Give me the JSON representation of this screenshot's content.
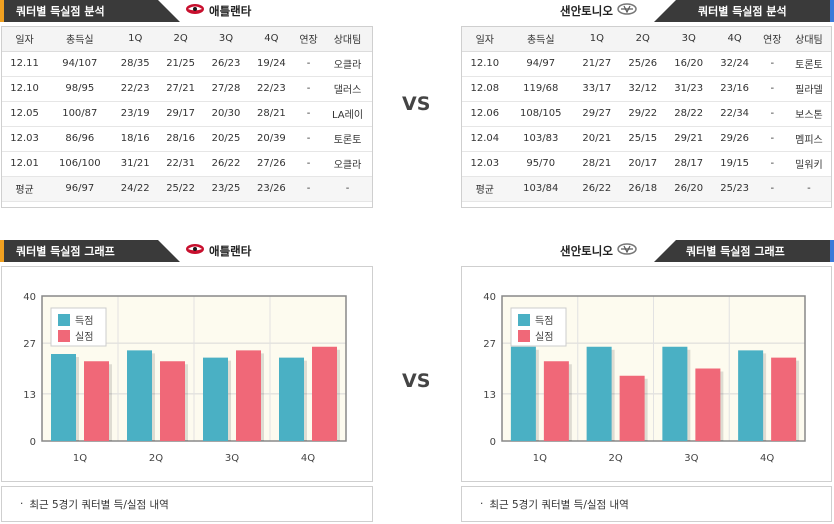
{
  "colors": {
    "header_bg": "#3a3a3a",
    "accent_left": "#f0a020",
    "accent_right": "#3b7ad9",
    "scored": "#4ab0c4",
    "allowed": "#f06878",
    "chart_bg": "#fdfbef",
    "frame": "#888888"
  },
  "analysis": {
    "left_title": "쿼터별 득실점 분석",
    "right_title": "쿼터별 득실점 분석",
    "headers": [
      "일자",
      "총득실",
      "1Q",
      "2Q",
      "3Q",
      "4Q",
      "연장",
      "상대팀"
    ]
  },
  "graph": {
    "left_title": "쿼터별 득실점 그래프",
    "right_title": "쿼터별 득실점 그래프",
    "legend_scored": "득점",
    "legend_allowed": "실점",
    "footnote": "최근 5경기 쿼터별 득/실점 내역"
  },
  "vs_label": "VS",
  "left_team": {
    "name": "애틀랜타",
    "logo_icon": "hawks-logo-icon",
    "rows": [
      [
        "12.11",
        "94/107",
        "28/35",
        "21/25",
        "26/23",
        "19/24",
        "-",
        "오클라"
      ],
      [
        "12.10",
        "98/95",
        "22/23",
        "27/21",
        "27/28",
        "22/23",
        "-",
        "댈러스"
      ],
      [
        "12.05",
        "100/87",
        "23/19",
        "29/17",
        "20/30",
        "28/21",
        "-",
        "LA레이"
      ],
      [
        "12.03",
        "86/96",
        "18/16",
        "28/16",
        "20/25",
        "20/39",
        "-",
        "토론토"
      ],
      [
        "12.01",
        "106/100",
        "31/21",
        "22/31",
        "26/22",
        "27/26",
        "-",
        "오클라"
      ]
    ],
    "avg": [
      "평균",
      "96/97",
      "24/22",
      "25/22",
      "23/25",
      "23/26",
      "-",
      "-"
    ]
  },
  "right_team": {
    "name": "샌안토니오",
    "logo_icon": "spurs-logo-icon",
    "rows": [
      [
        "12.10",
        "94/97",
        "21/27",
        "25/26",
        "16/20",
        "32/24",
        "-",
        "토론토"
      ],
      [
        "12.08",
        "119/68",
        "33/17",
        "32/12",
        "31/23",
        "23/16",
        "-",
        "필라델"
      ],
      [
        "12.06",
        "108/105",
        "29/27",
        "29/22",
        "28/22",
        "22/34",
        "-",
        "보스톤"
      ],
      [
        "12.04",
        "103/83",
        "20/21",
        "25/15",
        "29/21",
        "29/26",
        "-",
        "멤피스"
      ],
      [
        "12.03",
        "95/70",
        "28/21",
        "20/17",
        "28/17",
        "19/15",
        "-",
        "밀워키"
      ]
    ],
    "avg": [
      "평균",
      "103/84",
      "26/22",
      "26/18",
      "26/20",
      "25/23",
      "-",
      "-"
    ]
  },
  "chart_data": [
    {
      "type": "bar",
      "categories": [
        "1Q",
        "2Q",
        "3Q",
        "4Q"
      ],
      "series": [
        {
          "name": "득점",
          "values": [
            24,
            25,
            23,
            23
          ]
        },
        {
          "name": "실점",
          "values": [
            22,
            22,
            25,
            26
          ]
        }
      ],
      "ylim": [
        0,
        40
      ],
      "yticks": [
        "0",
        "13",
        "27",
        "40"
      ],
      "legend": "top-left",
      "grid": true
    },
    {
      "type": "bar",
      "categories": [
        "1Q",
        "2Q",
        "3Q",
        "4Q"
      ],
      "series": [
        {
          "name": "득점",
          "values": [
            26,
            26,
            26,
            25
          ]
        },
        {
          "name": "실점",
          "values": [
            22,
            18,
            20,
            23
          ]
        }
      ],
      "ylim": [
        0,
        40
      ],
      "yticks": [
        "0",
        "13",
        "27",
        "40"
      ],
      "legend": "top-left",
      "grid": true
    }
  ]
}
